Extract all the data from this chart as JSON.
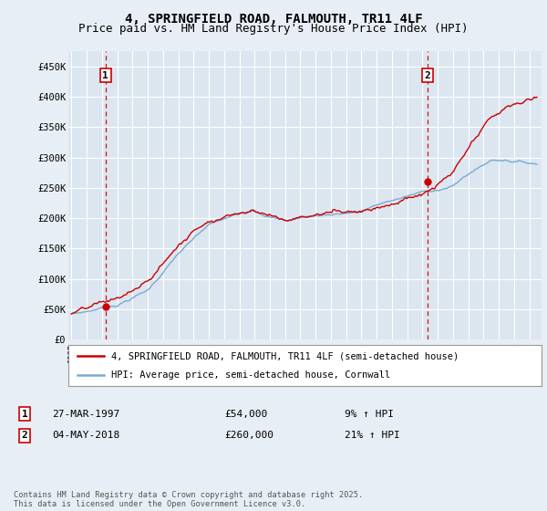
{
  "title": "4, SPRINGFIELD ROAD, FALMOUTH, TR11 4LF",
  "subtitle": "Price paid vs. HM Land Registry's House Price Index (HPI)",
  "ylim": [
    0,
    475000
  ],
  "yticks": [
    0,
    50000,
    100000,
    150000,
    200000,
    250000,
    300000,
    350000,
    400000,
    450000
  ],
  "ytick_labels": [
    "£0",
    "£50K",
    "£100K",
    "£150K",
    "£200K",
    "£250K",
    "£300K",
    "£350K",
    "£400K",
    "£450K"
  ],
  "property_color": "#cc0000",
  "hpi_color": "#7aaacf",
  "vline_color": "#cc0000",
  "marker_color": "#cc0000",
  "sale1_year": 1997.23,
  "sale1_price": 54000,
  "sale1_label": "1",
  "sale2_year": 2018.34,
  "sale2_price": 260000,
  "sale2_label": "2",
  "legend_property": "4, SPRINGFIELD ROAD, FALMOUTH, TR11 4LF (semi-detached house)",
  "legend_hpi": "HPI: Average price, semi-detached house, Cornwall",
  "note1_label": "1",
  "note1_date": "27-MAR-1997",
  "note1_price": "£54,000",
  "note1_hpi": "9% ↑ HPI",
  "note2_label": "2",
  "note2_date": "04-MAY-2018",
  "note2_price": "£260,000",
  "note2_hpi": "21% ↑ HPI",
  "footnote": "Contains HM Land Registry data © Crown copyright and database right 2025.\nThis data is licensed under the Open Government Licence v3.0.",
  "background_color": "#e8eef5",
  "plot_bg_color": "#dce6f0",
  "grid_color": "#ffffff",
  "title_fontsize": 10,
  "subtitle_fontsize": 9
}
